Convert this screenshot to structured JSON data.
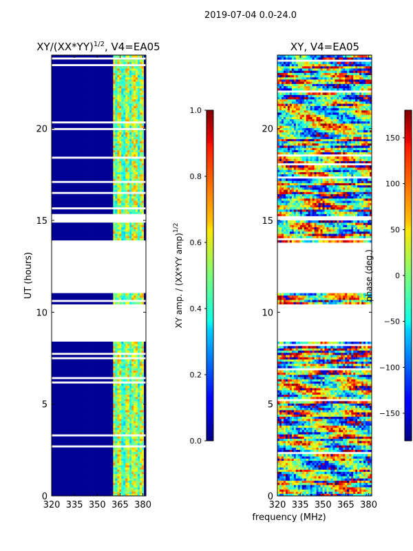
{
  "suptitle": "2019-07-04 0.0-24.0",
  "chart_data": [
    {
      "type": "heatmap",
      "title": "XY/(XX*YY)",
      "title_sup": "1/2",
      "title_tail": ", V4=EA05",
      "xlabel": "",
      "ylabel": "UT (hours)",
      "xlim": [
        320,
        382
      ],
      "ylim": [
        0,
        24
      ],
      "xticks": [
        320,
        335,
        350,
        365,
        380
      ],
      "yticks": [
        0,
        5,
        10,
        15,
        20
      ],
      "active_band_mhz": [
        360,
        381
      ],
      "data_gaps_hours": [
        [
          8.45,
          10.5
        ],
        [
          11.0,
          13.8
        ],
        [
          14.9,
          15.4
        ]
      ],
      "colorbar": {
        "label": "XY amp. / (XX*YY amp)",
        "label_sup": "1/2",
        "range": [
          0.0,
          1.0
        ],
        "ticks": [
          "0.0",
          "0.2",
          "0.4",
          "0.6",
          "0.8",
          "1.0"
        ],
        "colormap": "jet"
      }
    },
    {
      "type": "heatmap",
      "title": "XY, V4=EA05",
      "xlabel": "frequency (MHz)",
      "ylabel": "",
      "xlim": [
        320,
        382
      ],
      "ylim": [
        0,
        24
      ],
      "xticks": [
        320,
        335,
        350,
        365,
        380
      ],
      "yticks": [
        0,
        5,
        10,
        15,
        20
      ],
      "data_gaps_hours": [
        [
          8.45,
          10.3
        ],
        [
          11.0,
          13.8
        ],
        [
          15.0,
          15.3
        ]
      ],
      "colorbar": {
        "label": "phase (deg.)",
        "range": [
          -180,
          180
        ],
        "ticks": [
          "−150",
          "−100",
          "−50",
          "0",
          "50",
          "100",
          "150"
        ],
        "tick_values": [
          -150,
          -100,
          -50,
          0,
          50,
          100,
          150
        ],
        "colormap": "jet"
      }
    }
  ]
}
